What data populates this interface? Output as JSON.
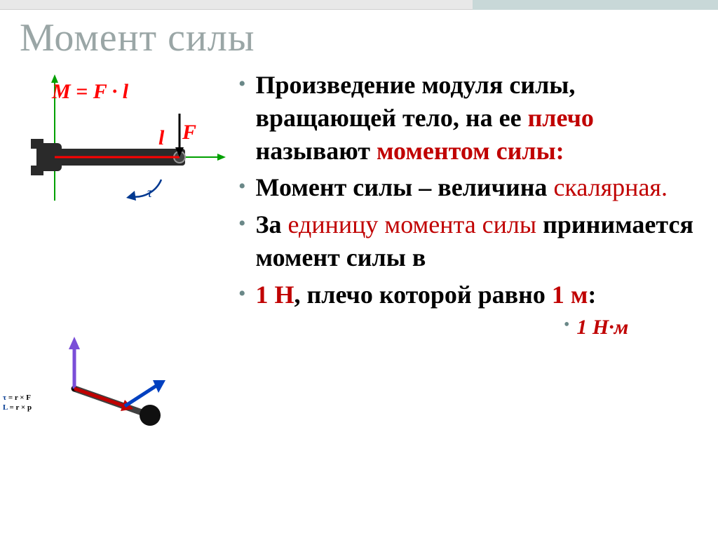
{
  "title": "Момент силы",
  "bullets": [
    {
      "segments": [
        {
          "text": "Произведение модуля силы, вращающей тело, на ее ",
          "cls": ""
        },
        {
          "text": "плечо",
          "cls": "red"
        },
        {
          "text": " называют ",
          "cls": ""
        },
        {
          "text": "моментом силы:",
          "cls": "red"
        }
      ]
    },
    {
      "segments": [
        {
          "text": "Момент силы – величина ",
          "cls": ""
        },
        {
          "text": "скалярная.",
          "cls": "red-normal"
        }
      ]
    },
    {
      "segments": [
        {
          "text": "За ",
          "cls": ""
        },
        {
          "text": "единицу момента силы",
          "cls": "red-normal"
        },
        {
          "text": " принимается момент силы в",
          "cls": ""
        }
      ]
    },
    {
      "segments": [
        {
          "text": "1 Н",
          "cls": "red"
        },
        {
          "text": ", плечо которой равно ",
          "cls": ""
        },
        {
          "text": "1 м",
          "cls": "red"
        },
        {
          "text": ":",
          "cls": ""
        }
      ]
    }
  ],
  "footer": "1 Н·м",
  "diagram1": {
    "formula": "M = F · l",
    "label_l": "l",
    "label_F": "F",
    "label_tau": "τ",
    "axis_color": "#00a000",
    "force_color": "#000000",
    "l_color": "#ff0000",
    "tau_arrow_color": "#003890",
    "wrench_color": "#303030"
  },
  "diagram2": {
    "formulas": [
      {
        "sym": "τ",
        "eq": " = r × F",
        "sym_color": "#003890"
      },
      {
        "sym": "L",
        "eq": " = r × p",
        "sym_color": "#003890"
      }
    ],
    "vec_colors": {
      "up": "#7a4ed8",
      "r": "#c00000",
      "F": "#0040c0",
      "rod": "#404040",
      "ball": "#202020"
    }
  },
  "colors": {
    "title": "#9aa6a6",
    "bullet_dot": "#6a8888",
    "red": "#c00000",
    "text": "#000000",
    "top_bar": "#e8e8e8",
    "top_bar_accent": "#c8d8d8"
  },
  "typography": {
    "title_fontsize": 56,
    "body_fontsize": 36,
    "footer_fontsize": 30,
    "formula_fontsize": 30,
    "small_formula_fontsize": 11
  }
}
